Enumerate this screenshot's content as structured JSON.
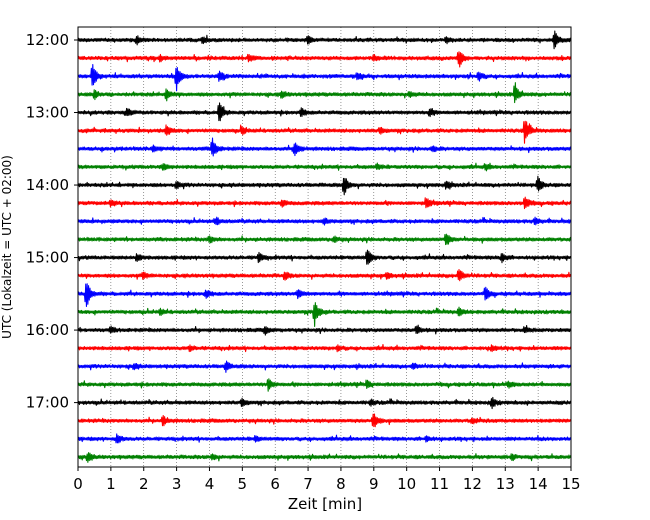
{
  "chart_data": {
    "type": "line",
    "chart_kind": "helicorder",
    "xlabel": "Zeit  [min]",
    "ylabel": "UTC (Lokalzeit = UTC + 02:00)",
    "xlim": [
      0,
      15
    ],
    "x_ticks": [
      0,
      1,
      2,
      3,
      4,
      5,
      6,
      7,
      8,
      9,
      10,
      11,
      12,
      13,
      14,
      15
    ],
    "x_tick_labels": [
      "0",
      "1",
      "2",
      "3",
      "4",
      "5",
      "6",
      "7",
      "8",
      "9",
      "10",
      "11",
      "12",
      "13",
      "14",
      "15"
    ],
    "y_tick_labels": [
      "12:00",
      "13:00",
      "14:00",
      "15:00",
      "16:00",
      "17:00"
    ],
    "y_tick_traces": [
      0,
      4,
      8,
      12,
      16,
      20
    ],
    "grid": "vertical dotted",
    "trace_interval_minutes": 15,
    "colors": [
      "#000000",
      "#ff0000",
      "#0000ff",
      "#008000"
    ],
    "traces": [
      {
        "start": "12:00",
        "events": [
          [
            14.5,
            1.0
          ],
          [
            1.8,
            0.4
          ],
          [
            3.8,
            0.3
          ],
          [
            7.0,
            0.4
          ],
          [
            11.2,
            0.3
          ]
        ]
      },
      {
        "start": "12:15",
        "events": [
          [
            11.6,
            1.0
          ],
          [
            5.2,
            0.4
          ],
          [
            2.5,
            0.3
          ],
          [
            9.0,
            0.3
          ]
        ]
      },
      {
        "start": "12:30",
        "events": [
          [
            0.45,
            1.4
          ],
          [
            3.0,
            1.5
          ],
          [
            4.3,
            0.5
          ],
          [
            8.5,
            0.4
          ],
          [
            12.2,
            0.5
          ]
        ]
      },
      {
        "start": "12:45",
        "events": [
          [
            13.3,
            1.1
          ],
          [
            2.7,
            0.6
          ],
          [
            0.5,
            0.5
          ],
          [
            6.2,
            0.4
          ],
          [
            10.1,
            0.3
          ]
        ]
      },
      {
        "start": "13:00",
        "events": [
          [
            4.3,
            1.2
          ],
          [
            1.5,
            0.4
          ],
          [
            6.8,
            0.4
          ],
          [
            10.7,
            0.4
          ]
        ]
      },
      {
        "start": "13:15",
        "events": [
          [
            13.6,
            1.6
          ],
          [
            2.7,
            0.6
          ],
          [
            5.0,
            0.4
          ],
          [
            9.2,
            0.3
          ]
        ]
      },
      {
        "start": "13:30",
        "events": [
          [
            4.1,
            1.1
          ],
          [
            6.6,
            0.8
          ],
          [
            2.3,
            0.3
          ],
          [
            10.8,
            0.3
          ]
        ]
      },
      {
        "start": "13:45",
        "events": [
          [
            9.1,
            0.3
          ],
          [
            2.6,
            0.3
          ],
          [
            12.4,
            0.3
          ]
        ]
      },
      {
        "start": "14:00",
        "events": [
          [
            8.1,
            1.1
          ],
          [
            14.0,
            0.8
          ],
          [
            3.0,
            0.4
          ],
          [
            11.2,
            0.4
          ]
        ]
      },
      {
        "start": "14:15",
        "events": [
          [
            13.6,
            0.8
          ],
          [
            10.6,
            0.6
          ],
          [
            1.0,
            0.4
          ],
          [
            6.2,
            0.4
          ]
        ]
      },
      {
        "start": "14:30",
        "events": [
          [
            4.2,
            0.4
          ],
          [
            7.5,
            0.3
          ],
          [
            13.9,
            0.4
          ]
        ]
      },
      {
        "start": "14:45",
        "events": [
          [
            11.2,
            0.7
          ],
          [
            4.0,
            0.4
          ],
          [
            7.8,
            0.3
          ]
        ]
      },
      {
        "start": "15:00",
        "events": [
          [
            8.8,
            1.0
          ],
          [
            5.5,
            0.5
          ],
          [
            1.8,
            0.4
          ],
          [
            12.9,
            0.5
          ]
        ]
      },
      {
        "start": "15:15",
        "events": [
          [
            11.6,
            0.7
          ],
          [
            6.3,
            0.4
          ],
          [
            2.0,
            0.3
          ],
          [
            9.4,
            0.3
          ]
        ]
      },
      {
        "start": "15:30",
        "events": [
          [
            0.25,
            1.8
          ],
          [
            12.4,
            0.7
          ],
          [
            6.7,
            0.6
          ],
          [
            3.9,
            0.4
          ]
        ]
      },
      {
        "start": "15:45",
        "events": [
          [
            7.2,
            1.4
          ],
          [
            11.6,
            0.4
          ],
          [
            2.5,
            0.3
          ]
        ]
      },
      {
        "start": "16:00",
        "events": [
          [
            10.3,
            0.5
          ],
          [
            5.7,
            0.4
          ],
          [
            1.0,
            0.3
          ],
          [
            13.6,
            0.3
          ]
        ]
      },
      {
        "start": "16:15",
        "events": [
          [
            7.9,
            0.3
          ],
          [
            3.4,
            0.3
          ],
          [
            12.6,
            0.3
          ]
        ]
      },
      {
        "start": "16:30",
        "events": [
          [
            4.5,
            0.5
          ],
          [
            10.2,
            0.3
          ],
          [
            1.7,
            0.3
          ]
        ]
      },
      {
        "start": "16:45",
        "events": [
          [
            5.8,
            0.7
          ],
          [
            8.8,
            0.4
          ],
          [
            13.1,
            0.3
          ]
        ]
      },
      {
        "start": "17:00",
        "events": [
          [
            12.6,
            0.6
          ],
          [
            5.0,
            0.4
          ],
          [
            8.9,
            0.3
          ]
        ]
      },
      {
        "start": "17:15",
        "events": [
          [
            9.0,
            0.9
          ],
          [
            2.6,
            0.5
          ],
          [
            12.0,
            0.3
          ]
        ]
      },
      {
        "start": "17:30",
        "events": [
          [
            1.2,
            0.5
          ],
          [
            5.4,
            0.3
          ],
          [
            10.6,
            0.3
          ]
        ]
      },
      {
        "start": "17:45",
        "events": [
          [
            0.3,
            0.5
          ],
          [
            4.1,
            0.3
          ],
          [
            13.2,
            0.3
          ]
        ]
      }
    ]
  }
}
